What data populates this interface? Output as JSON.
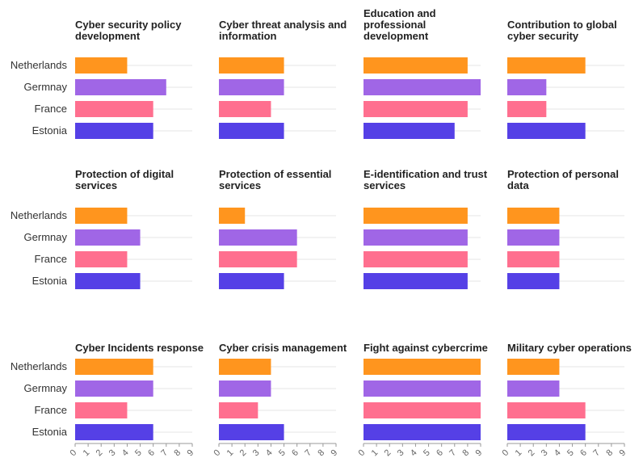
{
  "chart_data": {
    "type": "bar",
    "orientation": "horizontal",
    "categories": [
      "Netherlands",
      "Germnay",
      "France",
      "Estonia"
    ],
    "colors": {
      "Netherlands": "#ff951e",
      "Germnay": "#a066e6",
      "France": "#ff6f8f",
      "Estonia": "#5540e6"
    },
    "xlim": [
      0,
      9
    ],
    "x_ticks": [
      "0",
      "1",
      "2",
      "3",
      "4",
      "5",
      "6",
      "7",
      "8",
      "9"
    ],
    "grid": true,
    "panels": [
      {
        "title": [
          "Cyber security policy",
          "development"
        ],
        "values": [
          4,
          7,
          6,
          6
        ]
      },
      {
        "title": [
          "Cyber threat analysis and",
          "information"
        ],
        "values": [
          5,
          5,
          4,
          5
        ]
      },
      {
        "title": [
          "Education and",
          "professional",
          "development"
        ],
        "values": [
          8,
          9,
          8,
          7
        ]
      },
      {
        "title": [
          "Contribution to global",
          "cyber security"
        ],
        "values": [
          6,
          3,
          3,
          6
        ]
      },
      {
        "title": [
          "Protection of digital",
          "services"
        ],
        "values": [
          4,
          5,
          4,
          5
        ]
      },
      {
        "title": [
          "Protection of essential",
          "services"
        ],
        "values": [
          2,
          6,
          6,
          5
        ]
      },
      {
        "title": [
          "E-identification and trust",
          "services"
        ],
        "values": [
          8,
          8,
          8,
          8
        ]
      },
      {
        "title": [
          "Protection of personal",
          "data"
        ],
        "values": [
          4,
          4,
          4,
          4
        ]
      },
      {
        "title": [
          "Cyber Incidents response"
        ],
        "values": [
          6,
          6,
          4,
          6
        ]
      },
      {
        "title": [
          "Cyber crisis management"
        ],
        "values": [
          4,
          4,
          3,
          5
        ]
      },
      {
        "title": [
          "Fight against cybercrime"
        ],
        "values": [
          9,
          9,
          9,
          9
        ]
      },
      {
        "title": [
          "Military cyber operations"
        ],
        "values": [
          4,
          4,
          6,
          6
        ]
      }
    ]
  }
}
